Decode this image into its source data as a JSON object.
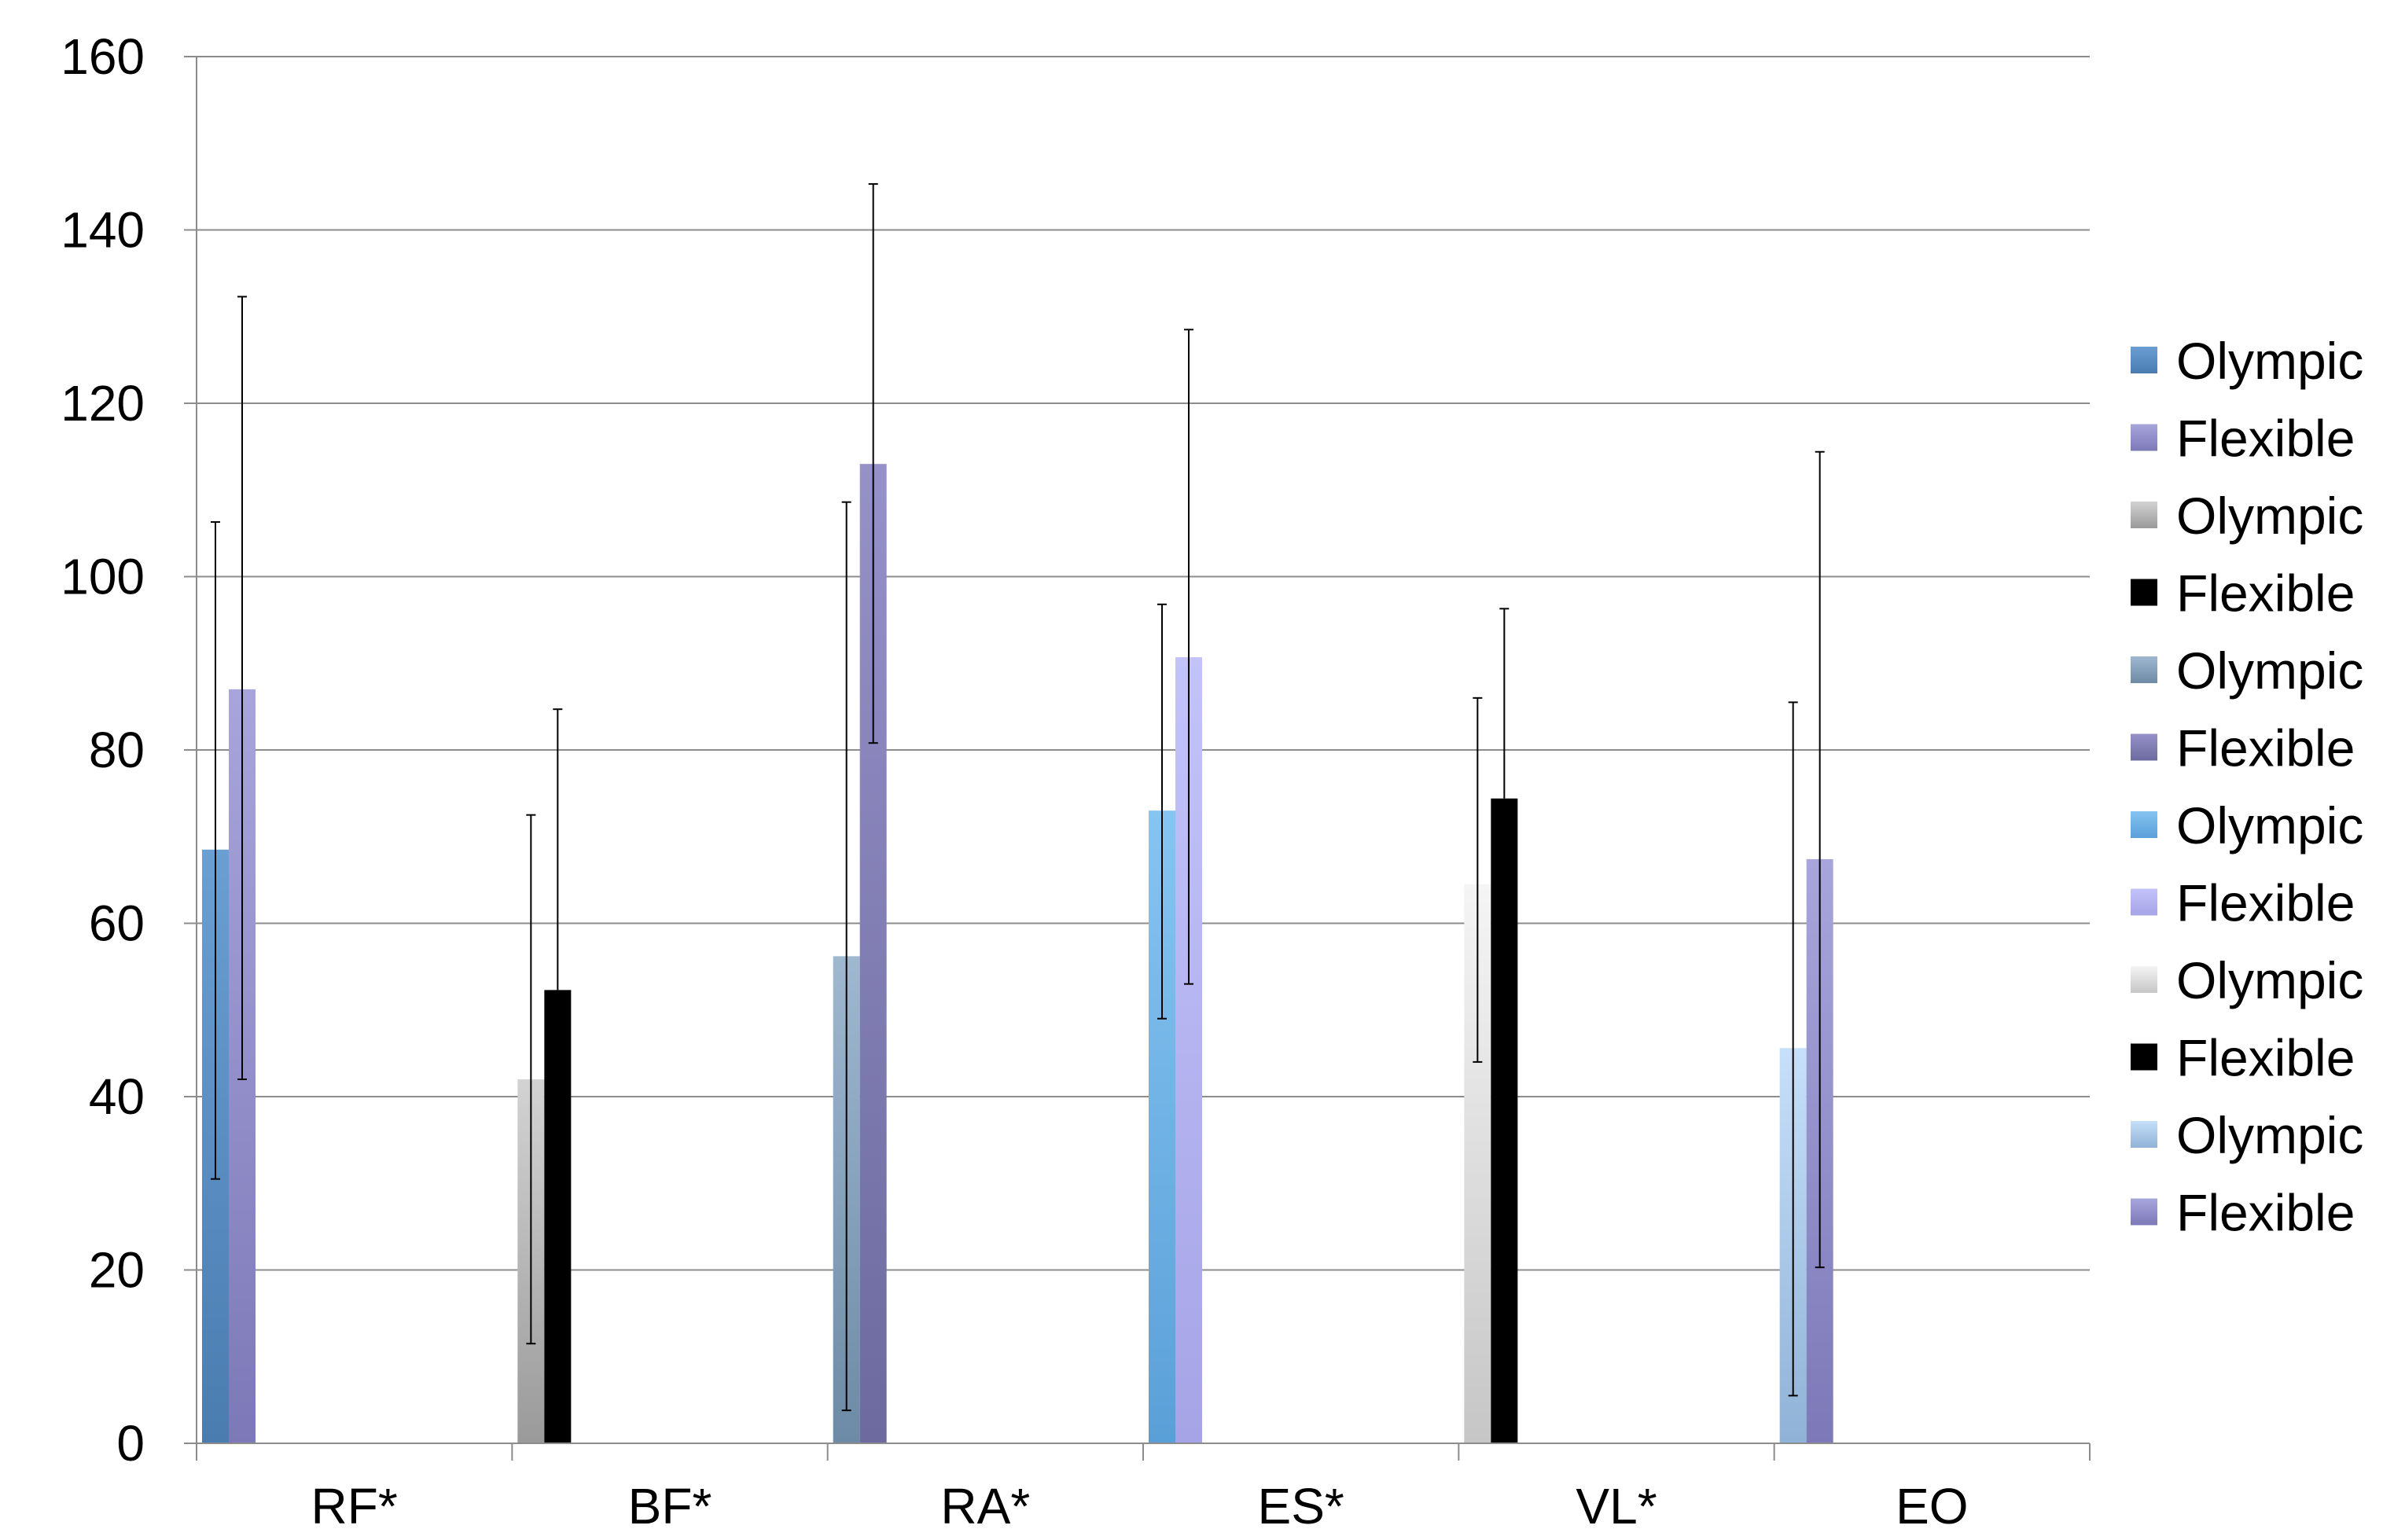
{
  "chart_data": {
    "type": "bar",
    "categories": [
      "RF*",
      "BF*",
      "RA*",
      "ES*",
      "VL*",
      "EO"
    ],
    "ylim": [
      0,
      160
    ],
    "yticks": [
      0,
      20,
      40,
      60,
      80,
      100,
      120,
      140,
      160
    ],
    "grid": true,
    "legend_position": "right",
    "series": [
      {
        "name": "Olympic",
        "category": "RF*",
        "value": 68.5,
        "error": [
          30.5,
          106.3
        ],
        "color_top": "#6a9fd3",
        "color_bottom": "#4a7cb0"
      },
      {
        "name": "Flexible",
        "category": "RF*",
        "value": 87.0,
        "error": [
          42.0,
          132.3
        ],
        "color_top": "#a8a5dc",
        "color_bottom": "#7d79b8"
      },
      {
        "name": "Olympic",
        "category": "BF*",
        "value": 42.0,
        "error": [
          11.5,
          72.5
        ],
        "color_top": "#d3d3d3",
        "color_bottom": "#9a9a9a"
      },
      {
        "name": "Flexible",
        "category": "BF*",
        "value": 52.3,
        "error": [
          null,
          84.7
        ],
        "color_top": "#000000",
        "color_bottom": "#000000"
      },
      {
        "name": "Olympic",
        "category": "RA*",
        "value": 56.2,
        "error": [
          3.8,
          108.6
        ],
        "color_top": "#9fb8d0",
        "color_bottom": "#6d8aa6"
      },
      {
        "name": "Flexible",
        "category": "RA*",
        "value": 113.0,
        "error": [
          80.8,
          145.3
        ],
        "color_top": "#9691c9",
        "color_bottom": "#6c6a9e"
      },
      {
        "name": "Olympic",
        "category": "ES*",
        "value": 73.0,
        "error": [
          49.0,
          96.8
        ],
        "color_top": "#86c4f2",
        "color_bottom": "#5aa0d8"
      },
      {
        "name": "Flexible",
        "category": "ES*",
        "value": 90.7,
        "error": [
          53.0,
          128.5
        ],
        "color_top": "#c3c3fa",
        "color_bottom": "#a6a4e6"
      },
      {
        "name": "Olympic",
        "category": "VL*",
        "value": 64.5,
        "error": [
          44.0,
          86.0
        ],
        "color_top": "#f5f5f5",
        "color_bottom": "#c6c6c6"
      },
      {
        "name": "Flexible",
        "category": "VL*",
        "value": 74.4,
        "error": [
          null,
          96.3
        ],
        "color_top": "#000000",
        "color_bottom": "#000000"
      },
      {
        "name": "Olympic",
        "category": "EO",
        "value": 45.6,
        "error": [
          5.5,
          85.5
        ],
        "color_top": "#c7e0fa",
        "color_bottom": "#8fb2d6"
      },
      {
        "name": "Flexible",
        "category": "EO",
        "value": 67.4,
        "error": [
          20.3,
          114.4
        ],
        "color_top": "#a8a5dc",
        "color_bottom": "#7d79b8"
      }
    ]
  }
}
